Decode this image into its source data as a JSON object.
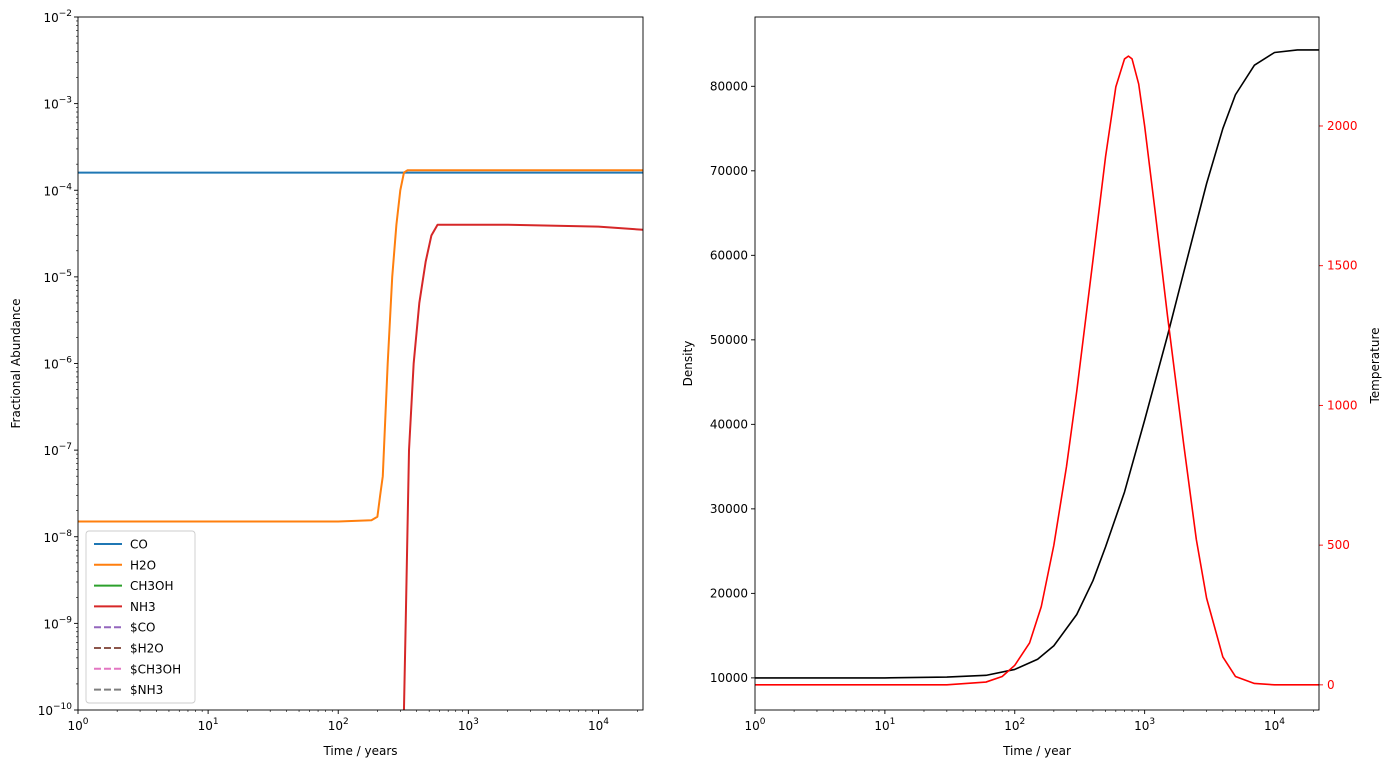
{
  "chart_data": [
    {
      "type": "line",
      "xlabel": "Time / years",
      "ylabel": "Fractional Abundance",
      "xscale": "log",
      "yscale": "log",
      "xlim": [
        1,
        22000
      ],
      "ylim": [
        1e-10,
        0.01
      ],
      "x_ticks": [
        {
          "value": 1,
          "base": "10",
          "exp": "0"
        },
        {
          "value": 10,
          "base": "10",
          "exp": "1"
        },
        {
          "value": 100,
          "base": "10",
          "exp": "2"
        },
        {
          "value": 1000,
          "base": "10",
          "exp": "3"
        },
        {
          "value": 10000,
          "base": "10",
          "exp": "4"
        }
      ],
      "y_ticks": [
        {
          "value": 1e-10,
          "base": "10",
          "exp": "−10"
        },
        {
          "value": 1e-09,
          "base": "10",
          "exp": "−9"
        },
        {
          "value": 1e-08,
          "base": "10",
          "exp": "−8"
        },
        {
          "value": 1e-07,
          "base": "10",
          "exp": "−7"
        },
        {
          "value": 1e-06,
          "base": "10",
          "exp": "−6"
        },
        {
          "value": 1e-05,
          "base": "10",
          "exp": "−5"
        },
        {
          "value": 0.0001,
          "base": "10",
          "exp": "−4"
        },
        {
          "value": 0.001,
          "base": "10",
          "exp": "−3"
        },
        {
          "value": 0.01,
          "base": "10",
          "exp": "−2"
        }
      ],
      "legend_position": "lower-left",
      "grid": false,
      "series": [
        {
          "name": "CO",
          "color": "#1f77b4",
          "dash": "solid",
          "x": [
            1,
            22000
          ],
          "y": [
            0.00016,
            0.00016
          ]
        },
        {
          "name": "H2O",
          "color": "#ff7f0e",
          "dash": "solid",
          "x": [
            1,
            100,
            180,
            200,
            210,
            220,
            240,
            260,
            280,
            300,
            320,
            340,
            400,
            1000,
            22000
          ],
          "y": [
            1.5e-08,
            1.5e-08,
            1.55e-08,
            1.7e-08,
            3e-08,
            5e-08,
            1e-06,
            1e-05,
            4e-05,
            0.0001,
            0.00016,
            0.00017,
            0.00017,
            0.00017,
            0.00017
          ]
        },
        {
          "name": "CH3OH",
          "color": "#2ca02c",
          "dash": "solid",
          "x": [],
          "y": []
        },
        {
          "name": "NH3",
          "color": "#d62728",
          "dash": "solid",
          "x": [
            320,
            330,
            350,
            380,
            420,
            470,
            520,
            580,
            700,
            2000,
            10000,
            22000
          ],
          "y": [
            1e-10,
            1e-09,
            1e-07,
            1e-06,
            5e-06,
            1.5e-05,
            3e-05,
            4e-05,
            4e-05,
            4e-05,
            3.8e-05,
            3.5e-05
          ]
        },
        {
          "name": "$CO",
          "color": "#9467bd",
          "dash": "dashed",
          "x": [],
          "y": []
        },
        {
          "name": "$H2O",
          "color": "#8c564b",
          "dash": "dashed",
          "x": [],
          "y": []
        },
        {
          "name": "$CH3OH",
          "color": "#e377c2",
          "dash": "dashed",
          "x": [],
          "y": []
        },
        {
          "name": "$NH3",
          "color": "#7f7f7f",
          "dash": "dashed",
          "x": [],
          "y": []
        }
      ]
    },
    {
      "type": "line",
      "xlabel": "Time / year",
      "ylabel": "Density",
      "y2label": "Temperature",
      "xscale": "log",
      "xlim": [
        1,
        22000
      ],
      "ylim": [
        6200,
        88200
      ],
      "y2lim": [
        -90,
        2390
      ],
      "x_ticks": [
        {
          "value": 1,
          "base": "10",
          "exp": "0"
        },
        {
          "value": 10,
          "base": "10",
          "exp": "1"
        },
        {
          "value": 100,
          "base": "10",
          "exp": "2"
        },
        {
          "value": 1000,
          "base": "10",
          "exp": "3"
        },
        {
          "value": 10000,
          "base": "10",
          "exp": "4"
        }
      ],
      "y_ticks": [
        "10000",
        "20000",
        "30000",
        "40000",
        "50000",
        "60000",
        "70000",
        "80000"
      ],
      "y2_ticks": [
        "0",
        "500",
        "1000",
        "1500",
        "2000"
      ],
      "y2_color": "#ff0000",
      "grid": false,
      "series": [
        {
          "name": "",
          "axis": "left",
          "color": "#000000",
          "x": [
            1,
            10,
            30,
            60,
            100,
            150,
            200,
            300,
            400,
            500,
            700,
            1000,
            1500,
            2000,
            3000,
            4000,
            5000,
            7000,
            10000,
            15000,
            22000
          ],
          "y": [
            10000,
            10000,
            10100,
            10300,
            11000,
            12200,
            13800,
            17500,
            21500,
            25500,
            32000,
            40500,
            50500,
            58000,
            68500,
            75000,
            79000,
            82500,
            84000,
            84300,
            84300
          ]
        },
        {
          "name": "",
          "axis": "right",
          "color": "#ff0000",
          "x": [
            1,
            30,
            60,
            80,
            100,
            130,
            160,
            200,
            250,
            300,
            400,
            500,
            600,
            700,
            750,
            800,
            900,
            1000,
            1200,
            1500,
            2000,
            2500,
            3000,
            4000,
            5000,
            7000,
            10000,
            22000
          ],
          "y": [
            0,
            0,
            10,
            30,
            70,
            150,
            280,
            500,
            780,
            1050,
            1520,
            1890,
            2140,
            2240,
            2250,
            2240,
            2150,
            2000,
            1700,
            1320,
            860,
            520,
            310,
            100,
            30,
            5,
            0,
            0
          ]
        }
      ]
    }
  ]
}
